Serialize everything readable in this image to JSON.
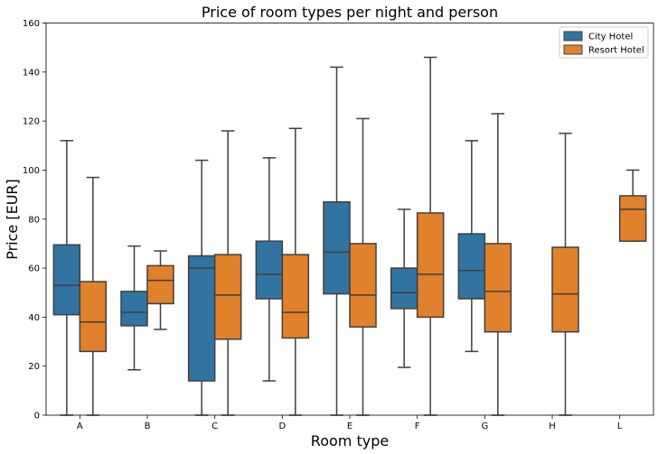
{
  "chart_data": {
    "type": "box",
    "title": "Price of room types per night and person",
    "xlabel": "Room type",
    "ylabel": "Price [EUR]",
    "ylim": [
      0,
      160
    ],
    "yticks": [
      0,
      20,
      40,
      60,
      80,
      100,
      120,
      140,
      160
    ],
    "categories": [
      "A",
      "B",
      "C",
      "D",
      "E",
      "F",
      "G",
      "H",
      "L"
    ],
    "legend_position": "top-right",
    "grid": false,
    "series": [
      {
        "name": "City Hotel",
        "color": "#3274a1",
        "boxes": [
          {
            "category": "A",
            "whislo": 0,
            "q1": 41,
            "med": 53,
            "q3": 69.5,
            "whishi": 112
          },
          {
            "category": "B",
            "whislo": 18.5,
            "q1": 36.5,
            "med": 42,
            "q3": 50.5,
            "whishi": 69
          },
          {
            "category": "C",
            "whislo": 0,
            "q1": 14,
            "med": 60,
            "q3": 65,
            "whishi": 104
          },
          {
            "category": "D",
            "whislo": 14,
            "q1": 47.5,
            "med": 57.5,
            "q3": 71,
            "whishi": 105
          },
          {
            "category": "E",
            "whislo": 0,
            "q1": 49.5,
            "med": 66.5,
            "q3": 87,
            "whishi": 142
          },
          {
            "category": "F",
            "whislo": 19.5,
            "q1": 43.5,
            "med": 50,
            "q3": 60,
            "whishi": 84
          },
          {
            "category": "G",
            "whislo": 26,
            "q1": 47.5,
            "med": 59,
            "q3": 74,
            "whishi": 112
          }
        ]
      },
      {
        "name": "Resort Hotel",
        "color": "#e1812c",
        "boxes": [
          {
            "category": "A",
            "whislo": 0,
            "q1": 26,
            "med": 38,
            "q3": 54.5,
            "whishi": 97
          },
          {
            "category": "B",
            "whislo": 35,
            "q1": 45.5,
            "med": 55,
            "q3": 61,
            "whishi": 67
          },
          {
            "category": "C",
            "whislo": 0,
            "q1": 31,
            "med": 49,
            "q3": 65.5,
            "whishi": 116
          },
          {
            "category": "D",
            "whislo": 0,
            "q1": 31.5,
            "med": 42,
            "q3": 65.5,
            "whishi": 117
          },
          {
            "category": "E",
            "whislo": 0,
            "q1": 36,
            "med": 49,
            "q3": 70,
            "whishi": 121
          },
          {
            "category": "F",
            "whislo": 0,
            "q1": 40,
            "med": 57.5,
            "q3": 82.5,
            "whishi": 146
          },
          {
            "category": "G",
            "whislo": 0,
            "q1": 34,
            "med": 50.5,
            "q3": 70,
            "whishi": 123
          },
          {
            "category": "H",
            "whislo": 0,
            "q1": 34,
            "med": 49.5,
            "q3": 68.5,
            "whishi": 115
          },
          {
            "category": "L",
            "whislo": 71,
            "q1": 71,
            "med": 84,
            "q3": 89.5,
            "whishi": 100
          }
        ]
      }
    ]
  }
}
